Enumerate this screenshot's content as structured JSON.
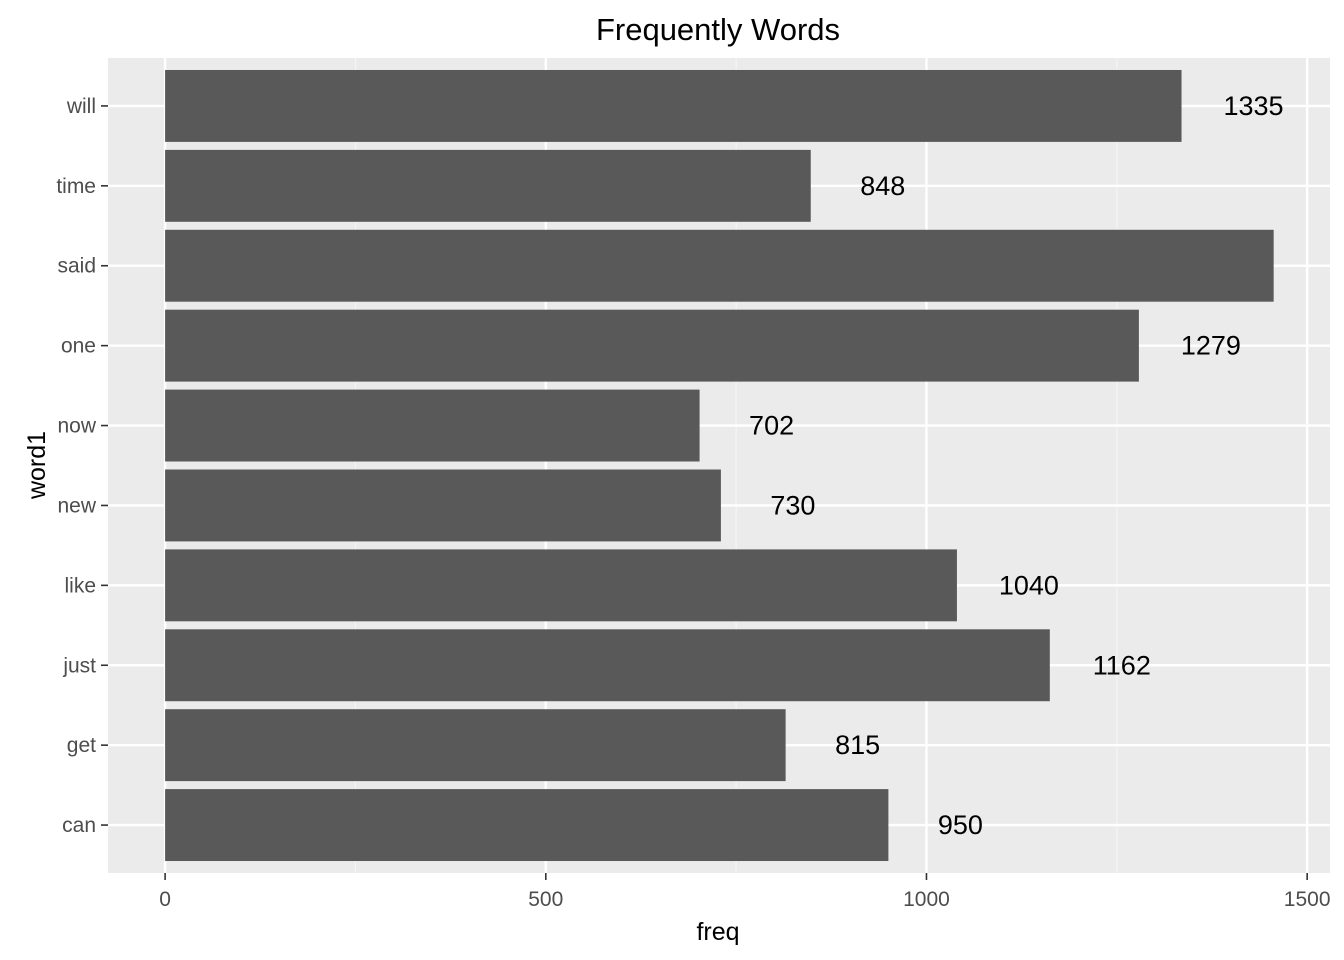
{
  "chart_data": {
    "type": "bar",
    "orientation": "horizontal",
    "title": "Frequently Words",
    "xlabel": "freq",
    "ylabel": "word1",
    "categories": [
      "can",
      "get",
      "just",
      "like",
      "new",
      "now",
      "one",
      "said",
      "time",
      "will"
    ],
    "values": [
      950,
      815,
      1162,
      1040,
      730,
      702,
      1279,
      1456,
      848,
      1335
    ],
    "data_labels": [
      "950",
      "815",
      "1162",
      "1040",
      "730",
      "702",
      "1279",
      "",
      "848",
      "1335"
    ],
    "xlim": [
      -75,
      1530
    ],
    "x_ticks": [
      0,
      500,
      1000,
      1500
    ],
    "x_tick_labels": [
      "0",
      "500",
      "1000",
      "1500"
    ],
    "grid": true,
    "legend": "none",
    "colors": {
      "bar": "#595959",
      "panel": "#ebebeb",
      "grid_major": "#ffffff",
      "grid_minor": "#f5f5f5",
      "text": "#000000",
      "tick_text": "#4d4d4d",
      "tick_mark": "#333333"
    }
  }
}
